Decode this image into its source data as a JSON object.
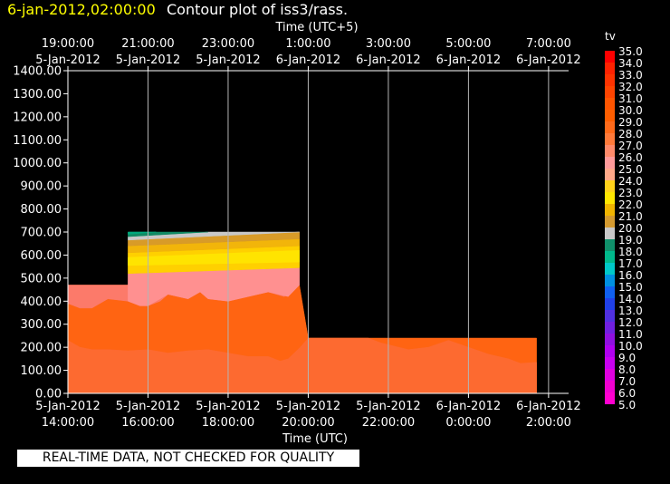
{
  "header": {
    "time": "6-jan-2012,02:00:00",
    "title": "Contour plot of iss3/rass."
  },
  "notice": "REAL-TIME DATA, NOT CHECKED FOR QUALITY",
  "chart_data": {
    "type": "area",
    "title": "Contour plot of iss3/rass.",
    "top_axis_label": "Time (UTC+5)",
    "top_ticks": [
      {
        "h": 0,
        "l1": "19:00:00",
        "l2": "5-Jan-2012"
      },
      {
        "h": 2,
        "l1": "21:00:00",
        "l2": "5-Jan-2012"
      },
      {
        "h": 4,
        "l1": "23:00:00",
        "l2": "5-Jan-2012"
      },
      {
        "h": 6,
        "l1": "1:00:00",
        "l2": "6-Jan-2012"
      },
      {
        "h": 8,
        "l1": "3:00:00",
        "l2": "6-Jan-2012"
      },
      {
        "h": 10,
        "l1": "5:00:00",
        "l2": "6-Jan-2012"
      },
      {
        "h": 12,
        "l1": "7:00:00",
        "l2": "6-Jan-2012"
      }
    ],
    "xlabel": "Time (UTC)",
    "bottom_ticks": [
      {
        "h": 0,
        "l1": "5-Jan-2012",
        "l2": "14:00:00"
      },
      {
        "h": 2,
        "l1": "5-Jan-2012",
        "l2": "16:00:00"
      },
      {
        "h": 4,
        "l1": "5-Jan-2012",
        "l2": "18:00:00"
      },
      {
        "h": 6,
        "l1": "5-Jan-2012",
        "l2": "20:00:00"
      },
      {
        "h": 8,
        "l1": "5-Jan-2012",
        "l2": "22:00:00"
      },
      {
        "h": 10,
        "l1": "6-Jan-2012",
        "l2": "0:00:00"
      },
      {
        "h": 12,
        "l1": "6-Jan-2012",
        "l2": "2:00:00"
      }
    ],
    "xlim_hours_from_2012-01-05T14:00Z": [
      0,
      12.5
    ],
    "ylim": [
      0,
      1400
    ],
    "y_ticks": [
      "0.00",
      "100.00",
      "200.00",
      "300.00",
      "400.00",
      "500.00",
      "600.00",
      "700.00",
      "800.00",
      "900.00",
      "1000.00",
      "1100.00",
      "1200.00",
      "1300.00",
      "1400.00"
    ],
    "grid": true,
    "legend_title": "tv",
    "legend_labels": [
      "35.0",
      "34.0",
      "33.0",
      "32.0",
      "31.0",
      "30.0",
      "29.0",
      "28.0",
      "27.0",
      "26.0",
      "25.0",
      "24.0",
      "23.0",
      "22.0",
      "21.0",
      "20.0",
      "19.0",
      "18.0",
      "17.0",
      "16.0",
      "15.0",
      "14.0",
      "13.0",
      "12.0",
      "11.0",
      "10.0",
      "9.0",
      "8.0",
      "7.0",
      "6.0",
      "5.0"
    ],
    "legend_colors": [
      "#ff0000",
      "#ff2200",
      "#ff3300",
      "#ff4400",
      "#ff5500",
      "#ff5e00",
      "#ff6a1a",
      "#ff7a3a",
      "#ff8a6a",
      "#ff9a9a",
      "#ffa888",
      "#ffd11a",
      "#ffe600",
      "#f0b400",
      "#d49a30",
      "#c8c8c8",
      "#10906a",
      "#00b88a",
      "#00c8c8",
      "#0090e0",
      "#1060f0",
      "#2040e8",
      "#5030e0",
      "#7020e0",
      "#9010e0",
      "#b000f0",
      "#c800f0",
      "#e000e0",
      "#f000d0",
      "#ff00d0"
    ],
    "legend_placement": "right",
    "regions": [
      {
        "name": "tv 28–29",
        "color": "#ff6412",
        "points": [
          [
            0,
            0
          ],
          [
            0,
            470
          ],
          [
            1.5,
            470
          ],
          [
            1.5,
            470
          ],
          [
            5.78,
            470
          ],
          [
            6.0,
            240
          ],
          [
            11.7,
            240
          ],
          [
            11.7,
            0
          ]
        ]
      },
      {
        "name": "tv 27–28",
        "color": "#fd6a30",
        "points": [
          [
            0,
            0
          ],
          [
            0,
            230
          ],
          [
            0.3,
            200
          ],
          [
            0.6,
            190
          ],
          [
            1.0,
            190
          ],
          [
            1.5,
            185
          ],
          [
            2.0,
            190
          ],
          [
            2.5,
            175
          ],
          [
            3.0,
            185
          ],
          [
            3.5,
            190
          ],
          [
            4.0,
            175
          ],
          [
            4.5,
            160
          ],
          [
            5.0,
            160
          ],
          [
            5.3,
            140
          ],
          [
            5.5,
            150
          ],
          [
            5.8,
            200
          ],
          [
            6.0,
            240
          ],
          [
            7.5,
            240
          ],
          [
            7.8,
            220
          ],
          [
            8.5,
            190
          ],
          [
            9.0,
            200
          ],
          [
            9.5,
            230
          ],
          [
            10.0,
            200
          ],
          [
            10.5,
            170
          ],
          [
            11.0,
            150
          ],
          [
            11.3,
            130
          ],
          [
            11.7,
            135
          ],
          [
            11.7,
            0
          ]
        ]
      },
      {
        "name": "tv 26–27",
        "color": "#fc7a6a",
        "points": [
          [
            0,
            470
          ],
          [
            0,
            390
          ],
          [
            0.3,
            370
          ],
          [
            0.6,
            370
          ],
          [
            1.0,
            410
          ],
          [
            1.5,
            400
          ],
          [
            1.8,
            380
          ],
          [
            2.0,
            380
          ],
          [
            2.3,
            400
          ],
          [
            2.5,
            430
          ],
          [
            3.0,
            410
          ],
          [
            3.3,
            440
          ],
          [
            3.5,
            410
          ],
          [
            4.0,
            400
          ],
          [
            4.5,
            420
          ],
          [
            5.0,
            440
          ],
          [
            5.4,
            420
          ],
          [
            5.78,
            470
          ],
          [
            1.5,
            470
          ]
        ]
      },
      {
        "name": "tv 25–26",
        "color": "#ff9090",
        "points": [
          [
            1.5,
            470
          ],
          [
            1.5,
            520
          ],
          [
            5.78,
            545
          ],
          [
            5.78,
            470
          ],
          [
            5.5,
            420
          ],
          [
            5.0,
            440
          ],
          [
            4.5,
            420
          ],
          [
            4.0,
            400
          ],
          [
            3.5,
            410
          ],
          [
            3.3,
            440
          ],
          [
            3.0,
            410
          ],
          [
            2.5,
            430
          ],
          [
            2.0,
            380
          ],
          [
            1.8,
            380
          ],
          [
            1.5,
            400
          ]
        ]
      },
      {
        "name": "tv 24–25",
        "color": "#ffd000",
        "points": [
          [
            1.5,
            520
          ],
          [
            1.5,
            610
          ],
          [
            5.78,
            640
          ],
          [
            5.78,
            545
          ]
        ]
      },
      {
        "name": "tv 23–24",
        "color": "#ffe400",
        "points": [
          [
            1.5,
            555
          ],
          [
            1.5,
            590
          ],
          [
            5.78,
            620
          ],
          [
            5.78,
            570
          ]
        ]
      },
      {
        "name": "tv 22–23",
        "color": "#f2b50a",
        "points": [
          [
            1.5,
            610
          ],
          [
            1.5,
            640
          ],
          [
            5.78,
            670
          ],
          [
            5.78,
            640
          ]
        ]
      },
      {
        "name": "tv 21–22",
        "color": "#d89b28",
        "points": [
          [
            1.5,
            640
          ],
          [
            1.5,
            665
          ],
          [
            5.78,
            700
          ],
          [
            5.78,
            670
          ]
        ]
      },
      {
        "name": "tv 20–21",
        "color": "#c8c8c8",
        "points": [
          [
            1.5,
            665
          ],
          [
            1.5,
            680
          ],
          [
            3.5,
            700
          ],
          [
            5.78,
            700
          ]
        ]
      },
      {
        "name": "tv 19–20",
        "color": "#108a64",
        "points": [
          [
            1.5,
            680
          ],
          [
            1.5,
            700
          ],
          [
            3.5,
            700
          ]
        ]
      },
      {
        "name": "tv 18–19",
        "color": "#00a87c",
        "points": [
          [
            1.5,
            690
          ],
          [
            1.5,
            700
          ],
          [
            2.2,
            700
          ]
        ]
      }
    ]
  }
}
